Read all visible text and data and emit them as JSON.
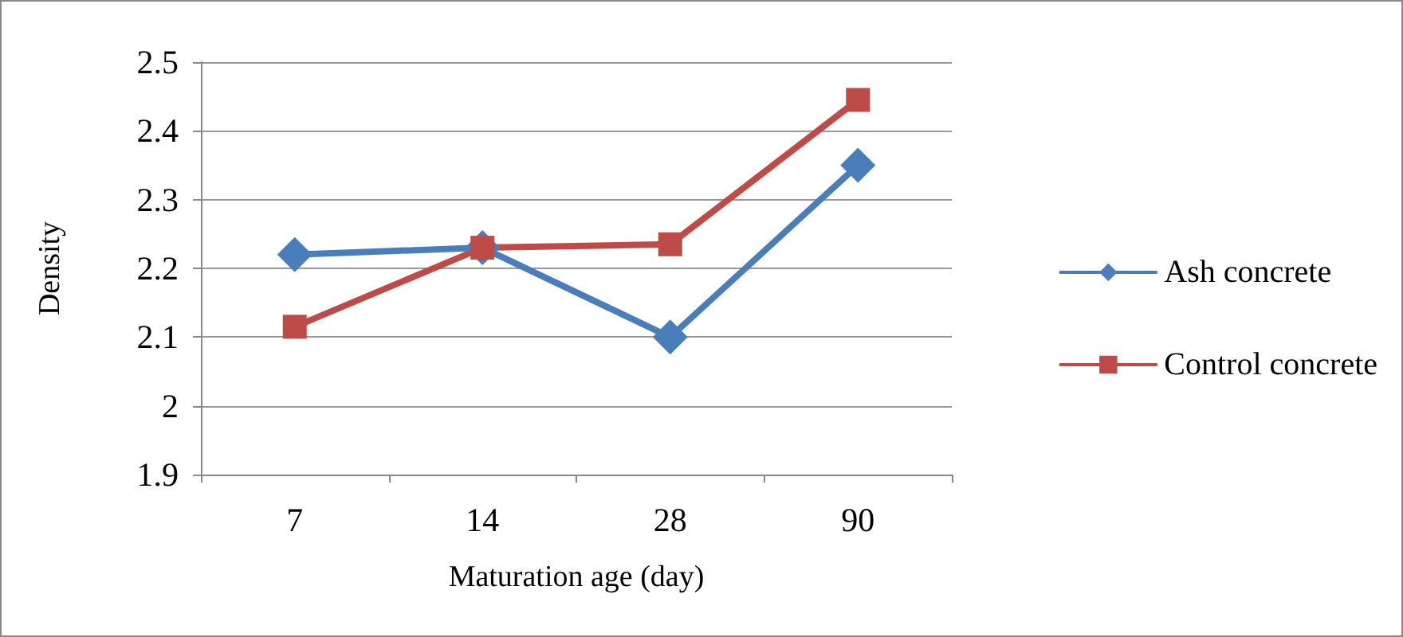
{
  "chart_data": {
    "type": "line",
    "xlabel": "Maturation age (day)",
    "ylabel": "Density",
    "categories": [
      "7",
      "14",
      "28",
      "90"
    ],
    "series": [
      {
        "name": "Ash concrete",
        "color": "#4a7ebb",
        "marker": "diamond",
        "values": [
          2.22,
          2.23,
          2.1,
          2.35
        ]
      },
      {
        "name": "Control concrete",
        "color": "#be4b48",
        "marker": "square",
        "values": [
          2.115,
          2.23,
          2.235,
          2.445
        ]
      }
    ],
    "ylim": [
      1.9,
      2.5
    ],
    "yticks": [
      1.9,
      2,
      2.1,
      2.2,
      2.3,
      2.4,
      2.5
    ],
    "grid": "y",
    "legend": "right",
    "line_style": "solid"
  }
}
